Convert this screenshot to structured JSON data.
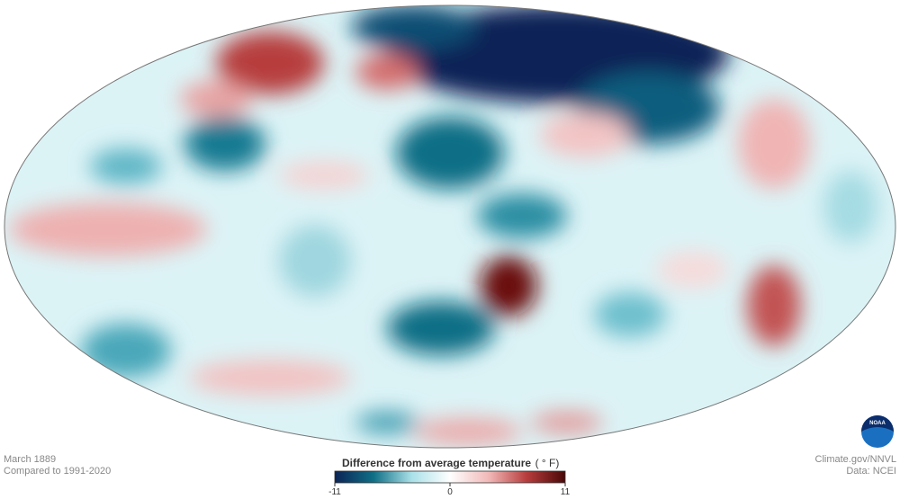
{
  "map": {
    "date": "March 1889",
    "baseline": "Compared to 1991-2020",
    "logo": "NOAA"
  },
  "legend": {
    "title": "Difference from average temperature",
    "unit": "( ° F)",
    "lim": [
      -11,
      11
    ],
    "ticks": [
      -11,
      0,
      11
    ],
    "colors": [
      "#0b2456",
      "#0f6e85",
      "#a9e0e8",
      "#ffffff",
      "#f2b9b9",
      "#b73c3c",
      "#4a0808"
    ]
  },
  "credits": {
    "source": "Climate.gov/NNVL",
    "data": "Data: NCEI"
  }
}
